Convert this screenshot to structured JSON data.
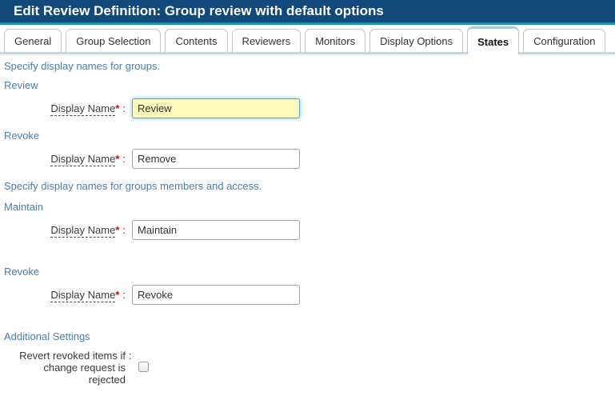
{
  "header": {
    "title": "Edit Review Definition: Group review with default options"
  },
  "tabs": [
    {
      "label": "General",
      "active": false
    },
    {
      "label": "Group Selection",
      "active": false
    },
    {
      "label": "Contents",
      "active": false
    },
    {
      "label": "Reviewers",
      "active": false
    },
    {
      "label": "Monitors",
      "active": false
    },
    {
      "label": "Display Options",
      "active": false
    },
    {
      "label": "States",
      "active": true
    },
    {
      "label": "Configuration",
      "active": false
    }
  ],
  "content": {
    "groups_intro": "Specify display names for groups.",
    "members_intro": "Specify display names for groups members and access.",
    "field_label": "Display Name",
    "required_marker": "*",
    "colon": ":",
    "rows": [
      {
        "heading": "Review",
        "value": "Review",
        "focused": true
      },
      {
        "heading": "Revoke",
        "value": "Remove",
        "focused": false
      },
      {
        "heading": "Maintain",
        "value": "Maintain",
        "focused": false
      },
      {
        "heading": "Revoke",
        "value": "Revoke",
        "focused": false
      }
    ],
    "additional": {
      "heading": "Additional Settings",
      "label_lines": [
        "Revert revoked items if",
        "change request is",
        "rejected"
      ],
      "checkbox_checked": false
    }
  },
  "colors": {
    "header_bg": "#11497c",
    "header_accent": "#1d90aa",
    "active_tab_accent": "#9dcdf3",
    "tab_underline": "#bcd9ef",
    "heading_text": "#4d7ea8",
    "required_marker": "#cc0000",
    "focused_input_bg": "#fbf9bb",
    "focused_input_border": "#59a3dc"
  }
}
